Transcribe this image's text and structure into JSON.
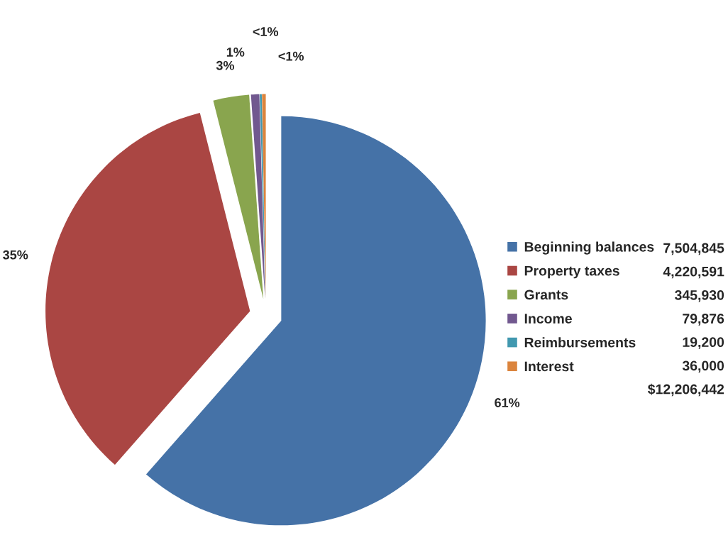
{
  "chart_data": {
    "type": "pie",
    "categories": [
      "Beginning balances",
      "Property taxes",
      "Grants",
      "Income",
      "Reimbursements",
      "Interest"
    ],
    "values": [
      7504845,
      4220591,
      345930,
      79876,
      19200,
      36000
    ],
    "colors": [
      "#4572a7",
      "#aa4643",
      "#89a54e",
      "#71588f",
      "#4198af",
      "#db843d"
    ],
    "value_labels": [
      "7,504,845",
      "4,220,591",
      "345,930",
      "79,876",
      "19,200",
      "36,000"
    ],
    "legend": "right",
    "annotations": [
      "61%",
      "35%",
      "3%",
      "1%",
      "<1%",
      "<1%",
      "$12,206,442"
    ]
  }
}
